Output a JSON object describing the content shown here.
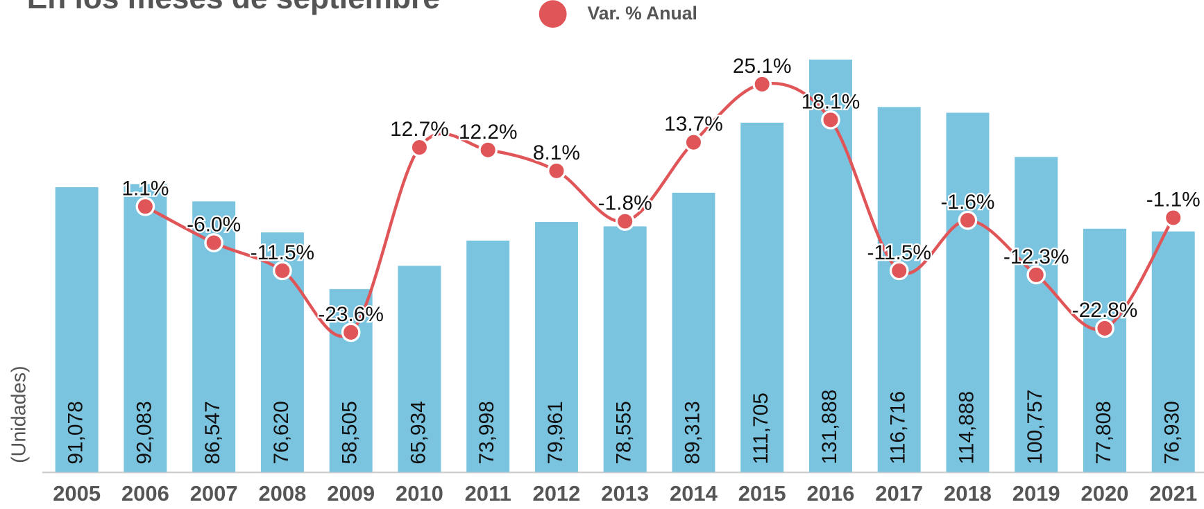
{
  "chart_data": {
    "type": "bar",
    "title": "En los meses de septiembre",
    "y_label": "(Unidades)",
    "categories": [
      "2005",
      "2006",
      "2007",
      "2008",
      "2009",
      "2010",
      "2011",
      "2012",
      "2013",
      "2014",
      "2015",
      "2016",
      "2017",
      "2018",
      "2019",
      "2020",
      "2021"
    ],
    "ylim": [
      0,
      132000
    ],
    "y2lim": [
      -51,
      30
    ],
    "series": [
      {
        "name": "Unidades",
        "type": "bar",
        "color": "#7bc4e0",
        "values": [
          91078,
          92083,
          86547,
          76620,
          58505,
          65934,
          73998,
          79961,
          78555,
          89313,
          111705,
          131888,
          116716,
          114888,
          100757,
          77808,
          76930
        ],
        "value_labels": [
          "91,078",
          "92,083",
          "86,547",
          "76,620",
          "58,505",
          "65,934",
          "73,998",
          "79,961",
          "78,555",
          "89,313",
          "111,705",
          "131,888",
          "116,716",
          "114,888",
          "100,757",
          "77,808",
          "76,930"
        ]
      },
      {
        "name": "Var. % Anual",
        "type": "line",
        "axis": "y2",
        "color": "#e05558",
        "values": [
          null,
          1.1,
          -6.0,
          -11.5,
          -23.6,
          12.7,
          12.2,
          8.1,
          -1.8,
          13.7,
          25.1,
          18.1,
          -11.5,
          -1.6,
          -12.3,
          -22.8,
          -1.1
        ],
        "value_labels": [
          null,
          "1.1%",
          "-6.0%",
          "-11.5%",
          "-23.6%",
          "12.7%",
          "12.2%",
          "8.1%",
          "-1.8%",
          "13.7%",
          "25.1%",
          "18.1%",
          "-11.5%",
          "-1.6%",
          "-12.3%",
          "-22.8%",
          "-1.1%"
        ]
      }
    ]
  }
}
